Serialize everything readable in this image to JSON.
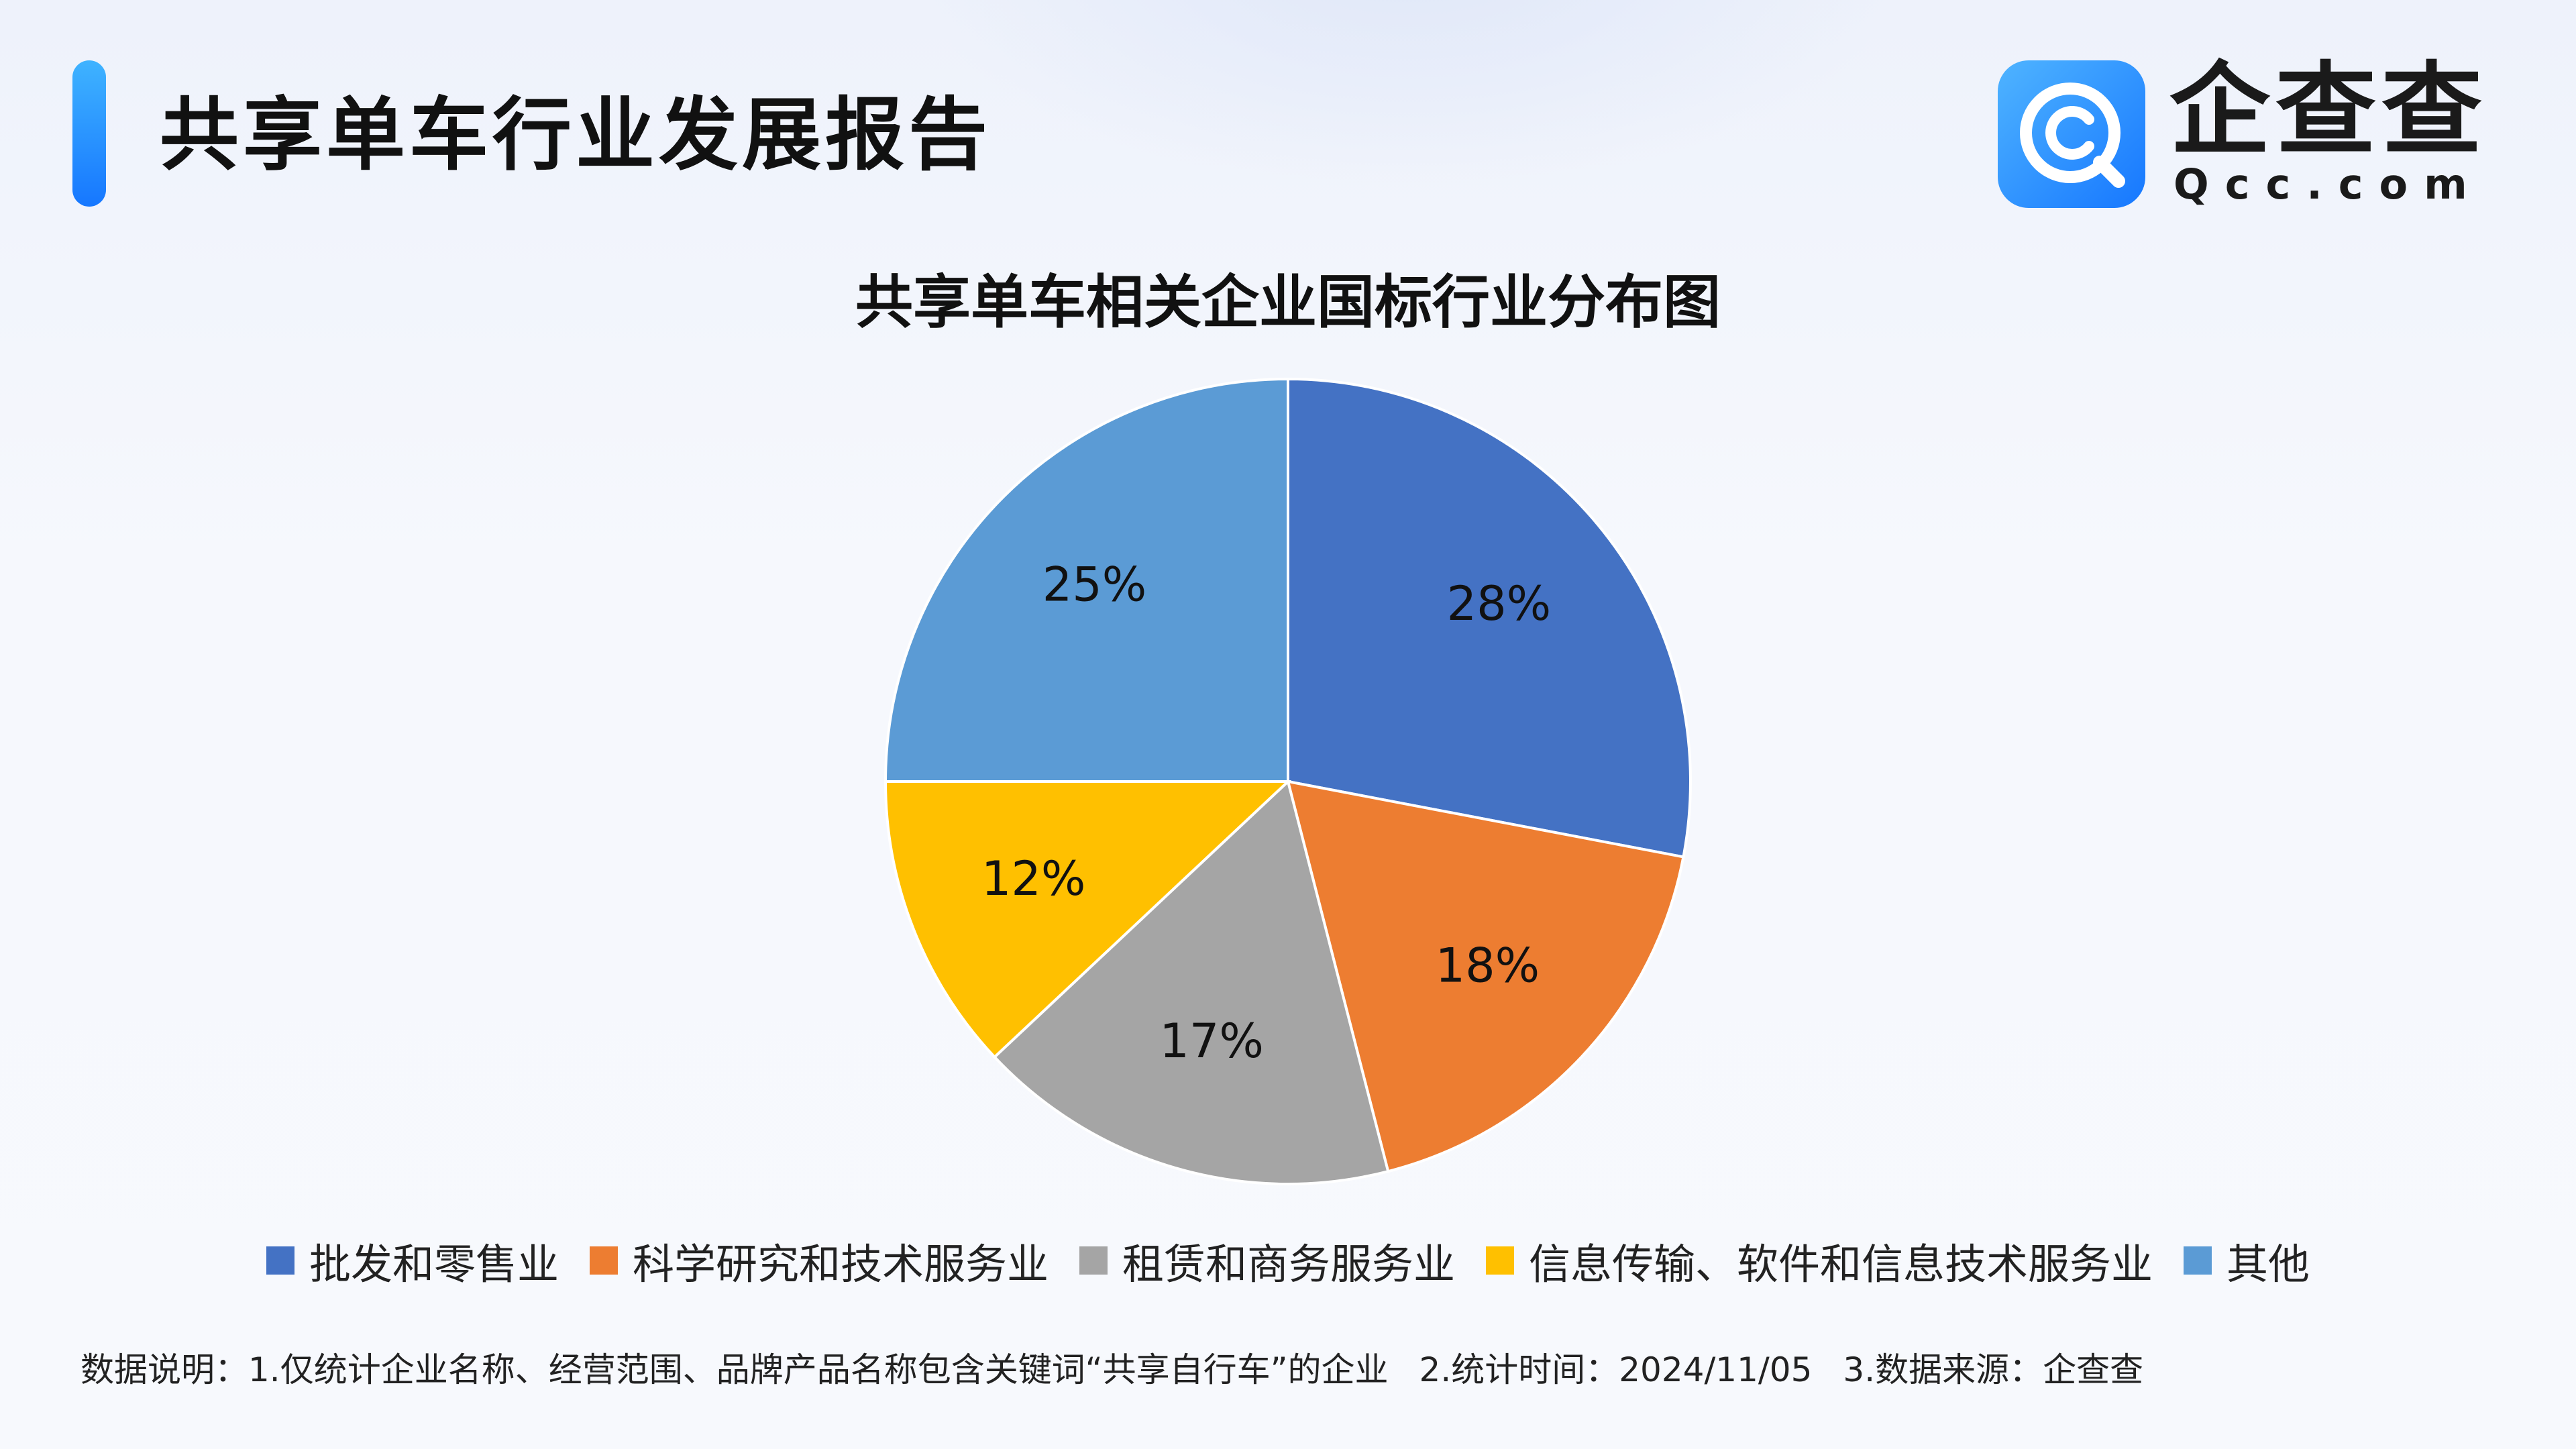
{
  "header": {
    "title": "共享单车行业发展报告",
    "logo_text": "企查查",
    "logo_sub": "Qcc.com",
    "logo_colors": {
      "primary": "#1677ff",
      "light": "#4fb4ff"
    }
  },
  "chart_data": {
    "type": "pie",
    "title": "共享单车相关企业国标行业分布图",
    "legend_position": "bottom",
    "slices": [
      {
        "label": "批发和零售业",
        "value": 28,
        "display": "28%",
        "color": "#4472c4"
      },
      {
        "label": "科学研究和技术服务业",
        "value": 18,
        "display": "18%",
        "color": "#ed7d31"
      },
      {
        "label": "租赁和商务服务业",
        "value": 17,
        "display": "17%",
        "color": "#a5a5a5"
      },
      {
        "label": "信息传输、软件和信息技术服务业",
        "value": 12,
        "display": "12%",
        "color": "#ffc000"
      },
      {
        "label": "其他",
        "value": 25,
        "display": "25%",
        "color": "#5b9bd5"
      }
    ]
  },
  "footnote": {
    "note1": "数据说明：1.仅统计企业名称、经营范围、品牌产品名称包含关键词“共享自行车”的企业",
    "note2": "2.统计时间：2024/11/05",
    "note3": "3.数据来源：企查查"
  }
}
